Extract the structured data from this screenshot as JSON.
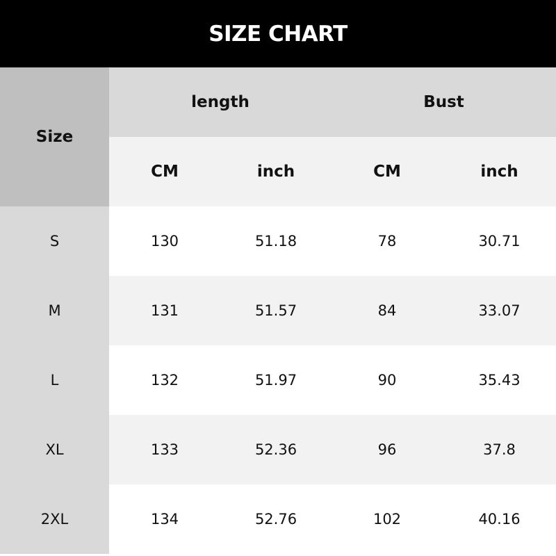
{
  "title": "SIZE CHART",
  "header": {
    "size": "Size",
    "groups": [
      "length",
      "Bust"
    ],
    "units": [
      "CM",
      "inch",
      "CM",
      "inch"
    ]
  },
  "rows": [
    {
      "size": "S",
      "values": [
        "130",
        "51.18",
        "78",
        "30.71"
      ]
    },
    {
      "size": "M",
      "values": [
        "131",
        "51.57",
        "84",
        "33.07"
      ]
    },
    {
      "size": "L",
      "values": [
        "132",
        "51.97",
        "90",
        "35.43"
      ]
    },
    {
      "size": "XL",
      "values": [
        "133",
        "52.36",
        "96",
        "37.8"
      ]
    },
    {
      "size": "2XL",
      "values": [
        "134",
        "52.76",
        "102",
        "40.16"
      ]
    }
  ],
  "colors": {
    "title_bg": "#000000",
    "size_header_bg": "#bfbfbf",
    "group_header_bg": "#d9d9d9",
    "unit_header_bg": "#f2f2f2",
    "size_col_bg": "#d9d9d9",
    "row_alt_bg": "#f2f2f2"
  }
}
